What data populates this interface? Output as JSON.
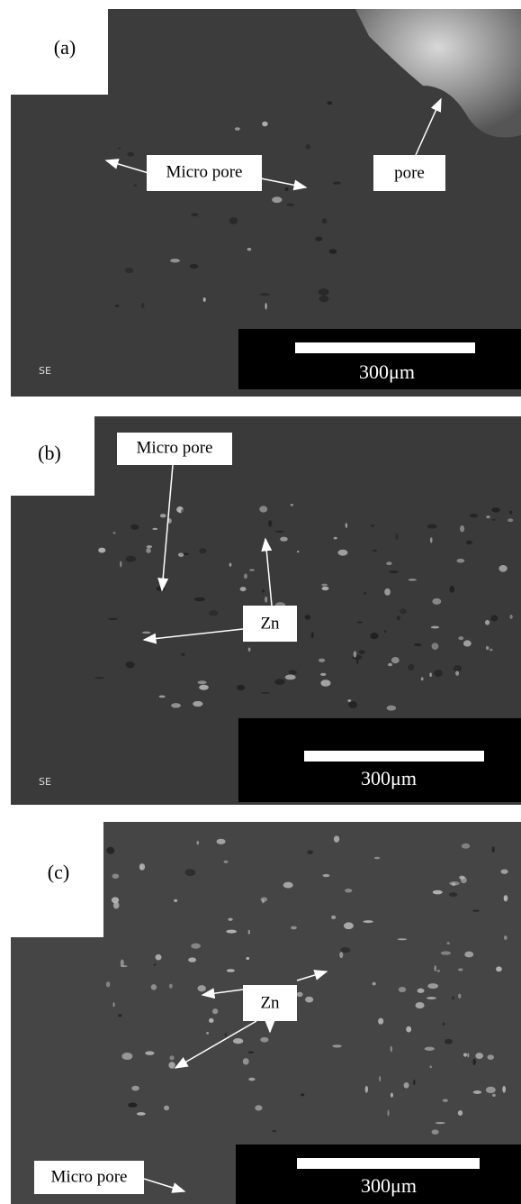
{
  "panels": [
    {
      "label": "(a)",
      "annotations": [
        "Micro pore",
        "pore"
      ],
      "scale_bar": "300μm",
      "detector": "SE"
    },
    {
      "label": "(b)",
      "annotations": [
        "Micro pore",
        "Zn"
      ],
      "scale_bar": "300μm",
      "detector": "SE"
    },
    {
      "label": "(c)",
      "annotations": [
        "Zn",
        "Micro pore"
      ],
      "scale_bar": "300μm"
    }
  ]
}
